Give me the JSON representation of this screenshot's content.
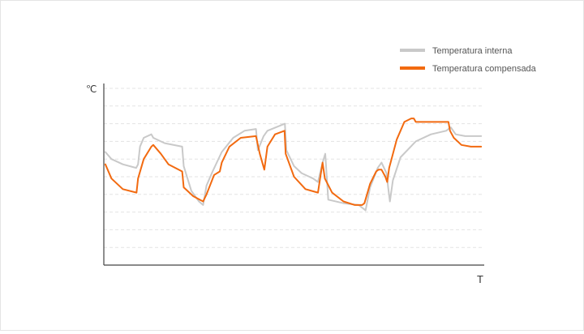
{
  "chart_data": {
    "type": "line",
    "title": "",
    "ylabel": "℃",
    "xlabel": "T",
    "xlim": [
      0,
      100
    ],
    "ylim": [
      0,
      10
    ],
    "grid": "horizontal-dashed",
    "legend_position": "top-right",
    "series": [
      {
        "name": "Temperatura interna",
        "color": "#c9c9c9",
        "points": [
          [
            0.4,
            6.4
          ],
          [
            2,
            6
          ],
          [
            5,
            5.7
          ],
          [
            8.5,
            5.5
          ],
          [
            9,
            5.7
          ],
          [
            9.5,
            6.7
          ],
          [
            10.5,
            7.2
          ],
          [
            12.5,
            7.4
          ],
          [
            13,
            7.2
          ],
          [
            16,
            6.9
          ],
          [
            20.6,
            6.7
          ],
          [
            21,
            5.6
          ],
          [
            23,
            4.2
          ],
          [
            25,
            3.6
          ],
          [
            26.1,
            3.4
          ],
          [
            27,
            4.5
          ],
          [
            28.6,
            5.3
          ],
          [
            31,
            6.4
          ],
          [
            34,
            7.2
          ],
          [
            37,
            7.6
          ],
          [
            40,
            7.7
          ],
          [
            40.5,
            6.5
          ],
          [
            42,
            7.3
          ],
          [
            43,
            7.6
          ],
          [
            47.6,
            8
          ],
          [
            48,
            6.5
          ],
          [
            50,
            5.6
          ],
          [
            52,
            5.2
          ],
          [
            55,
            4.9
          ],
          [
            56.3,
            4.7
          ],
          [
            57.5,
            5.8
          ],
          [
            58.2,
            6.3
          ],
          [
            59,
            3.7
          ],
          [
            63,
            3.5
          ],
          [
            67,
            3.4
          ],
          [
            68.8,
            3.1
          ],
          [
            70,
            4.4
          ],
          [
            72,
            5.5
          ],
          [
            73,
            5.8
          ],
          [
            74.3,
            5.2
          ],
          [
            74.8,
            4.3
          ],
          [
            75.2,
            3.6
          ],
          [
            76,
            4.8
          ],
          [
            78,
            6.1
          ],
          [
            82,
            7
          ],
          [
            86,
            7.4
          ],
          [
            90,
            7.6
          ],
          [
            91.2,
            7.8
          ],
          [
            92.5,
            7.4
          ],
          [
            95,
            7.3
          ],
          [
            99.2,
            7.3
          ]
        ]
      },
      {
        "name": "Temperatura compensada",
        "color": "#f26a10",
        "points": [
          [
            0.4,
            5.7
          ],
          [
            2,
            4.9
          ],
          [
            5,
            4.3
          ],
          [
            8.6,
            4.1
          ],
          [
            9,
            4.9
          ],
          [
            10.5,
            6
          ],
          [
            12.5,
            6.7
          ],
          [
            13,
            6.8
          ],
          [
            15,
            6.3
          ],
          [
            17,
            5.7
          ],
          [
            20.6,
            5.3
          ],
          [
            21,
            4.4
          ],
          [
            23.5,
            3.9
          ],
          [
            26.1,
            3.6
          ],
          [
            27,
            4
          ],
          [
            29,
            5.1
          ],
          [
            30.5,
            5.3
          ],
          [
            31,
            5.8
          ],
          [
            33,
            6.7
          ],
          [
            36,
            7.2
          ],
          [
            40,
            7.3
          ],
          [
            41,
            6.3
          ],
          [
            42.2,
            5.4
          ],
          [
            43,
            6.7
          ],
          [
            45,
            7.4
          ],
          [
            47.5,
            7.6
          ],
          [
            47.8,
            6.3
          ],
          [
            50,
            5
          ],
          [
            53,
            4.3
          ],
          [
            56.3,
            4.1
          ],
          [
            57,
            5.1
          ],
          [
            57.5,
            5.8
          ],
          [
            58.1,
            4.9
          ],
          [
            60,
            4.1
          ],
          [
            63,
            3.6
          ],
          [
            66,
            3.4
          ],
          [
            67.9,
            3.4
          ],
          [
            68.5,
            3.5
          ],
          [
            70,
            4.6
          ],
          [
            71.6,
            5.3
          ],
          [
            72.2,
            5.4
          ],
          [
            73,
            5.4
          ],
          [
            74,
            5
          ],
          [
            74.5,
            4.7
          ],
          [
            75,
            5.5
          ],
          [
            77,
            7.1
          ],
          [
            79,
            8.1
          ],
          [
            80.8,
            8.3
          ],
          [
            81.5,
            8.3
          ],
          [
            82,
            8.1
          ],
          [
            90,
            8.1
          ],
          [
            90.6,
            8.1
          ],
          [
            91,
            7.6
          ],
          [
            92,
            7.2
          ],
          [
            94,
            6.8
          ],
          [
            96.5,
            6.7
          ],
          [
            99.2,
            6.7
          ]
        ]
      }
    ]
  }
}
